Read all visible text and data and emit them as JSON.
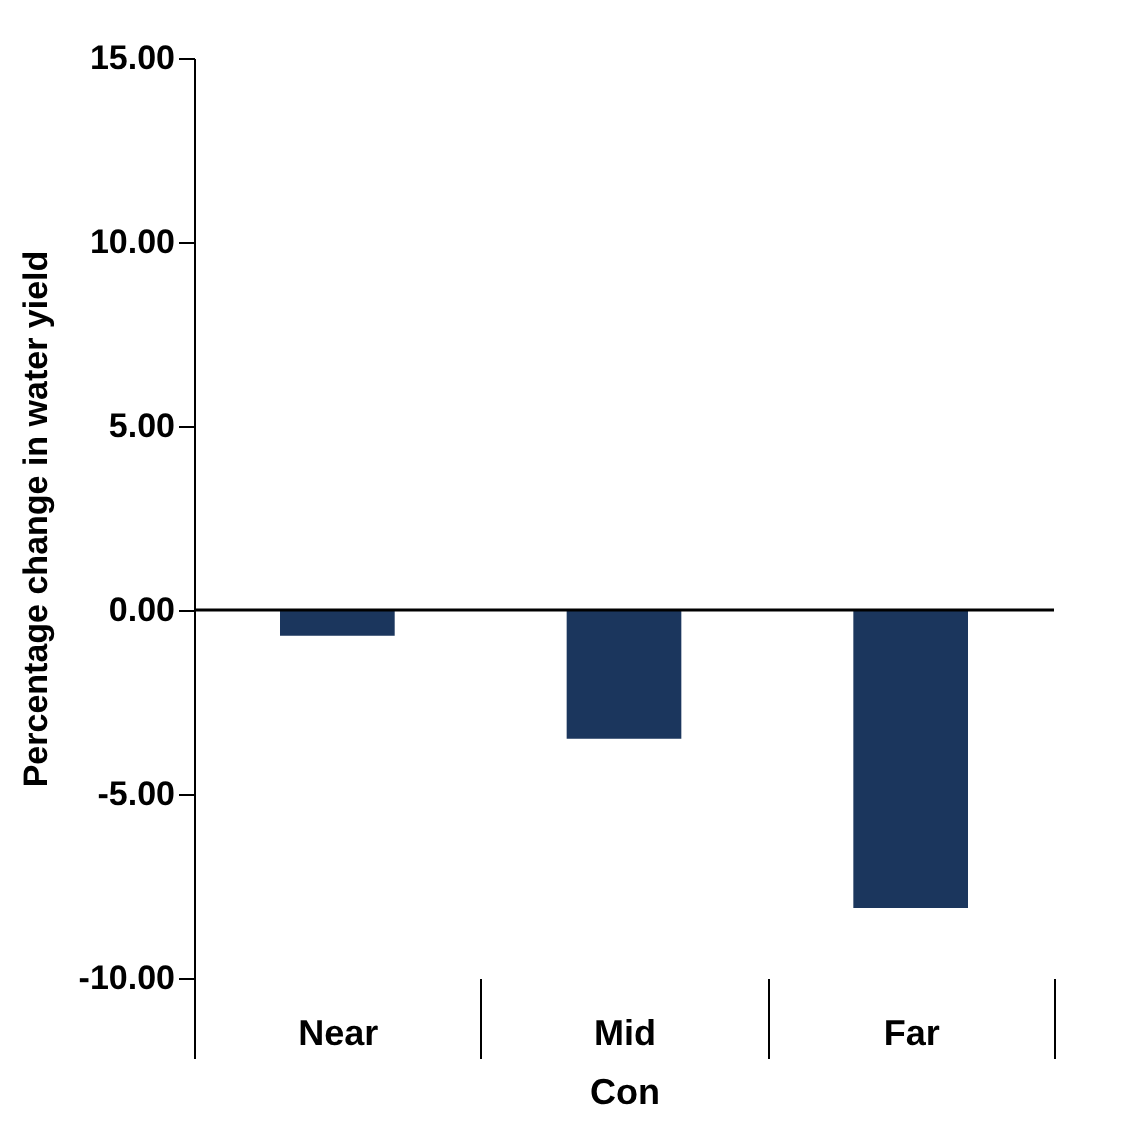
{
  "chart_data": {
    "type": "bar",
    "xlabel": "Con",
    "ylabel": "Percentage change in water yield",
    "categories": [
      "Near",
      "Mid",
      "Far"
    ],
    "values": [
      -0.7,
      -3.5,
      -8.1
    ],
    "color": "#1b365d",
    "ylim": [
      -10,
      15
    ],
    "yticks": [
      {
        "value": -10,
        "label": "-10.00"
      },
      {
        "value": -5,
        "label": "-5.00"
      },
      {
        "value": 0,
        "label": "0.00"
      },
      {
        "value": 5,
        "label": "5.00"
      },
      {
        "value": 10,
        "label": "10.00"
      },
      {
        "value": 15,
        "label": "15.00"
      }
    ]
  }
}
